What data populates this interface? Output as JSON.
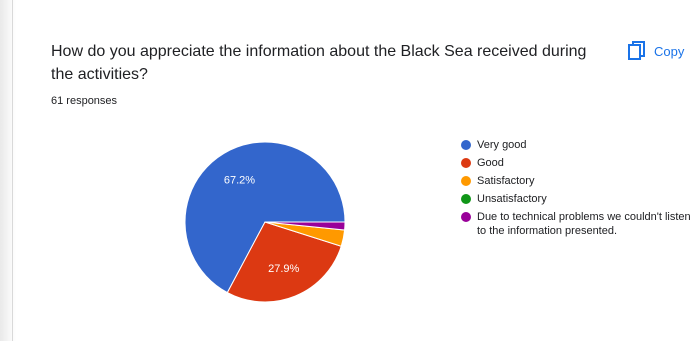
{
  "question": {
    "title": "How do you appreciate the information about the Black Sea received during the activities?",
    "responses": "61 responses"
  },
  "toolbar": {
    "copy_label": "Copy",
    "copy_icon": "copy-icon"
  },
  "chart_data": {
    "type": "pie",
    "categories": [
      "Very good",
      "Good",
      "Satisfactory",
      "Unsatisfactory",
      "Due to technical problems we couldn't listen to the information presented."
    ],
    "values": [
      67.2,
      27.9,
      3.3,
      0,
      1.6
    ],
    "data_labels": [
      "67.2%",
      "27.9%",
      "",
      "",
      ""
    ],
    "colors": [
      "#3366cc",
      "#dc3912",
      "#ff9900",
      "#109618",
      "#990099"
    ],
    "legend": "right"
  }
}
